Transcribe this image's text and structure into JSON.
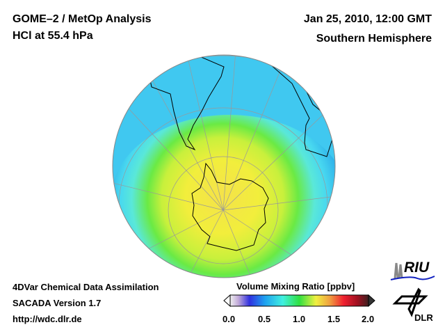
{
  "header": {
    "title": "GOME–2 / MetOp Analysis",
    "subtitle": "HCl at 55.4 hPa",
    "datetime": "Jan 25, 2010, 12:00 GMT",
    "region": "Southern Hemisphere"
  },
  "footer": {
    "line1": "4DVar Chemical Data Assimilation",
    "line2": "SACADA Version 1.7",
    "line3": "http://wdc.dlr.de"
  },
  "colorbar": {
    "title": "Volume Mixing Ratio [ppbv]",
    "ticks": [
      "0.0",
      "0.5",
      "1.0",
      "1.5",
      "2.0"
    ],
    "range": [
      0.0,
      2.0
    ]
  },
  "logos": {
    "riu": "RIU",
    "dlr": "DLR"
  }
}
